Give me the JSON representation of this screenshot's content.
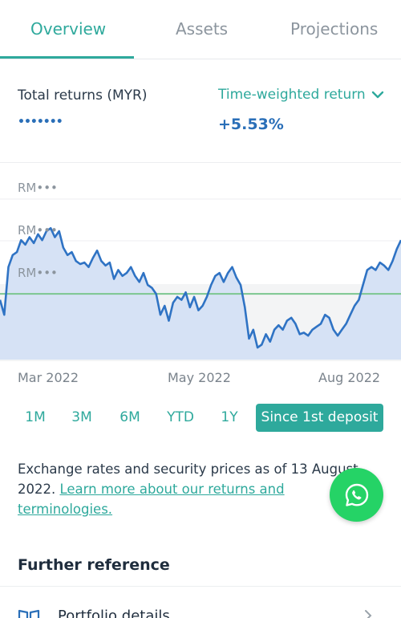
{
  "tabs": [
    {
      "label": "Overview",
      "active": true
    },
    {
      "label": "Assets",
      "active": false
    },
    {
      "label": "Projections",
      "active": false
    }
  ],
  "summary": {
    "returns_label": "Total returns (MYR)",
    "returns_value_masked": "•••••••",
    "return_type_label": "Time-weighted return",
    "return_value": "+5.53%"
  },
  "chart_data": {
    "type": "line",
    "y_tick_labels": [
      "RM•••",
      "RM•••",
      "RM•••"
    ],
    "x_tick_labels": [
      "Mar 2022",
      "May 2022",
      "Aug 2022"
    ],
    "baseline_color": "#7cc68f",
    "line_color": "#2f73c4",
    "fill_color": "#d6e2f5",
    "values": [
      0.4,
      0.3,
      0.62,
      0.7,
      0.72,
      0.8,
      0.77,
      0.82,
      0.78,
      0.84,
      0.8,
      0.86,
      0.88,
      0.82,
      0.86,
      0.75,
      0.7,
      0.72,
      0.66,
      0.64,
      0.65,
      0.62,
      0.68,
      0.73,
      0.66,
      0.63,
      0.65,
      0.54,
      0.6,
      0.56,
      0.58,
      0.62,
      0.56,
      0.52,
      0.58,
      0.5,
      0.48,
      0.44,
      0.3,
      0.36,
      0.26,
      0.38,
      0.42,
      0.4,
      0.45,
      0.35,
      0.42,
      0.33,
      0.36,
      0.42,
      0.5,
      0.56,
      0.58,
      0.52,
      0.58,
      0.62,
      0.55,
      0.5,
      0.35,
      0.14,
      0.2,
      0.08,
      0.1,
      0.17,
      0.12,
      0.2,
      0.23,
      0.2,
      0.26,
      0.28,
      0.24,
      0.17,
      0.18,
      0.16,
      0.2,
      0.22,
      0.24,
      0.3,
      0.28,
      0.2,
      0.16,
      0.2,
      0.24,
      0.3,
      0.36,
      0.4,
      0.5,
      0.6,
      0.62,
      0.6,
      0.65,
      0.63,
      0.6,
      0.66,
      0.74,
      0.8
    ],
    "baseline_value": 0.44,
    "ylim": [
      0,
      1
    ],
    "grid": true
  },
  "ranges": [
    {
      "label": "1M",
      "active": false
    },
    {
      "label": "3M",
      "active": false
    },
    {
      "label": "6M",
      "active": false
    },
    {
      "label": "YTD",
      "active": false
    },
    {
      "label": "1Y",
      "active": false
    },
    {
      "label": "Since 1st deposit",
      "active": true
    }
  ],
  "note": {
    "text": "Exchange rates and security prices as of 13 August 2022. ",
    "link_text": "Learn more about our returns and terminologies."
  },
  "further_reference": {
    "title": "Further reference",
    "items": [
      {
        "label": "Portfolio details",
        "icon": "book-icon"
      }
    ]
  },
  "icons": {
    "whatsapp": "whatsapp-icon",
    "chevron_down": "chevron-down-icon",
    "chevron_right": "chevron-right-icon"
  },
  "colors": {
    "accent": "#2ea99c",
    "value_blue": "#2a6fb8",
    "whatsapp_green": "#25d366"
  }
}
